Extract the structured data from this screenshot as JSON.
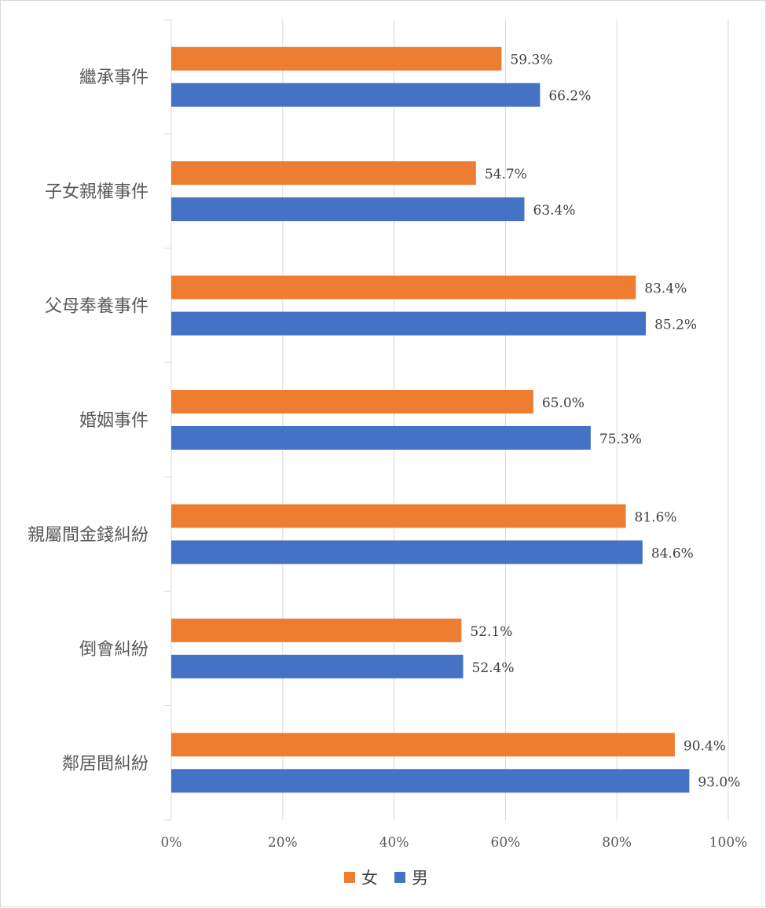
{
  "chart_data": {
    "type": "bar",
    "orientation": "horizontal",
    "categories": [
      "繼承事件",
      "子女親權事件",
      "父母奉養事件",
      "婚姻事件",
      "親屬間金錢糾紛",
      "倒會糾紛",
      "鄰居間糾紛"
    ],
    "series": [
      {
        "name": "女",
        "color": "#ED7D31",
        "values": [
          59.3,
          54.7,
          83.4,
          65.0,
          81.6,
          52.1,
          90.4
        ],
        "labels": [
          "59.3%",
          "54.7%",
          "83.4%",
          "65.0%",
          "81.6%",
          "52.1%",
          "90.4%"
        ]
      },
      {
        "name": "男",
        "color": "#4472C4",
        "values": [
          66.2,
          63.4,
          85.2,
          75.3,
          84.6,
          52.4,
          93.0
        ],
        "labels": [
          "66.2%",
          "63.4%",
          "85.2%",
          "75.3%",
          "84.6%",
          "52.4%",
          "93.0%"
        ]
      }
    ],
    "xlim": [
      0,
      100
    ],
    "ticks": [
      "0%",
      "20%",
      "40%",
      "60%",
      "80%",
      "100%"
    ],
    "grid": true,
    "legend_position": "bottom",
    "title": "",
    "xlabel": "",
    "ylabel": ""
  }
}
